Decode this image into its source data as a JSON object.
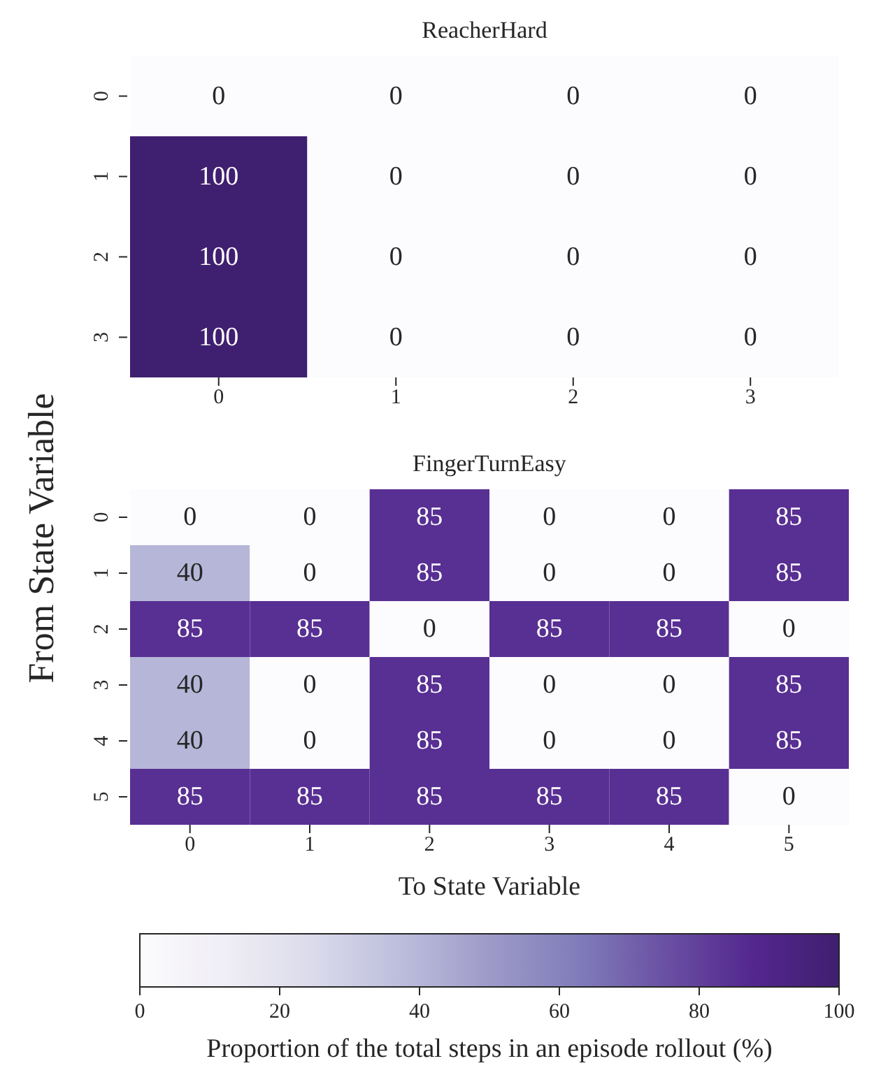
{
  "chart_data": [
    {
      "type": "heatmap",
      "title": "ReacherHard",
      "categories": [
        "0",
        "1",
        "2",
        "3"
      ],
      "y_categories": [
        "0",
        "1",
        "2",
        "3"
      ],
      "cells": [
        [
          0,
          0,
          0,
          0
        ],
        [
          100,
          0,
          0,
          0
        ],
        [
          100,
          0,
          0,
          0
        ],
        [
          100,
          0,
          0,
          0
        ]
      ],
      "data_labels": true
    },
    {
      "type": "heatmap",
      "title": "FingerTurnEasy",
      "xlabel": "To State Variable",
      "ylabel": "From State Variable",
      "categories": [
        "0",
        "1",
        "2",
        "3",
        "4",
        "5"
      ],
      "y_categories": [
        "0",
        "1",
        "2",
        "3",
        "4",
        "5"
      ],
      "cells": [
        [
          0,
          0,
          85,
          0,
          0,
          85
        ],
        [
          40,
          0,
          85,
          0,
          0,
          85
        ],
        [
          85,
          85,
          0,
          85,
          85,
          0
        ],
        [
          40,
          0,
          85,
          0,
          0,
          85
        ],
        [
          40,
          0,
          85,
          0,
          0,
          85
        ],
        [
          85,
          85,
          85,
          85,
          85,
          0
        ]
      ],
      "data_labels": true,
      "clim": [
        0,
        100
      ],
      "cticks": [
        0,
        20,
        40,
        60,
        80,
        100
      ],
      "clabel": "Proportion of the total steps in an episode rollout (%)"
    }
  ]
}
